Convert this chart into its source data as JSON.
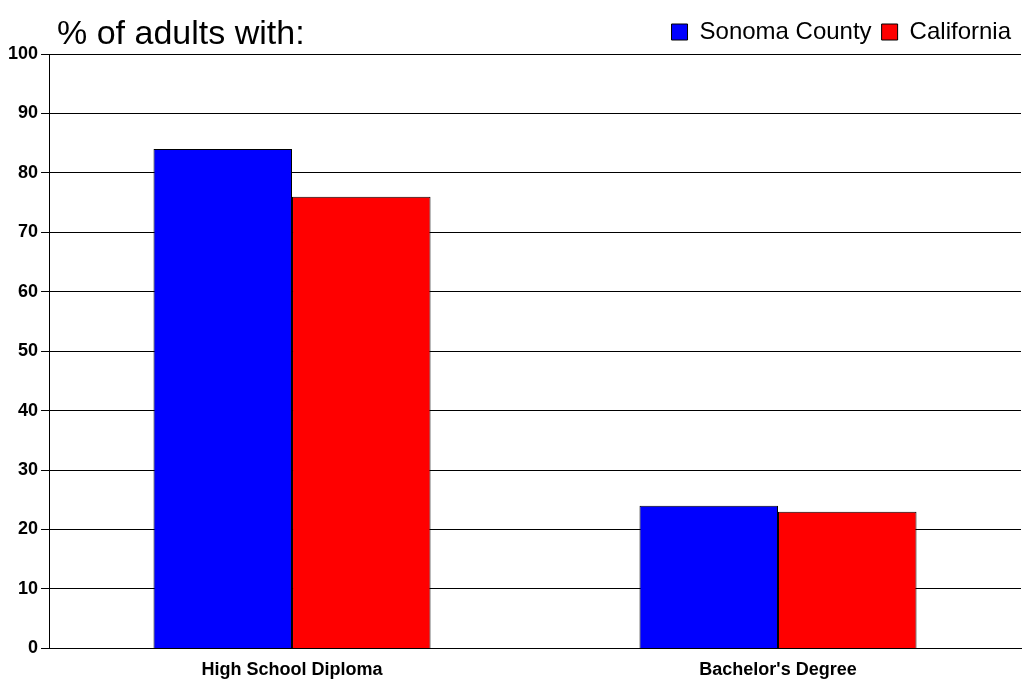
{
  "chart_data": {
    "type": "bar",
    "title": "% of adults with:",
    "categories": [
      "High School Diploma",
      "Bachelor's Degree"
    ],
    "series": [
      {
        "name": "Sonoma County",
        "color": "#0000ff",
        "values": [
          84,
          24
        ]
      },
      {
        "name": "California",
        "color": "#ff0000",
        "values": [
          76,
          23
        ]
      }
    ],
    "ylim": [
      0,
      100
    ],
    "yticks": [
      0,
      10,
      20,
      30,
      40,
      50,
      60,
      70,
      80,
      90,
      100
    ],
    "grid": "y",
    "legend": "top right"
  }
}
